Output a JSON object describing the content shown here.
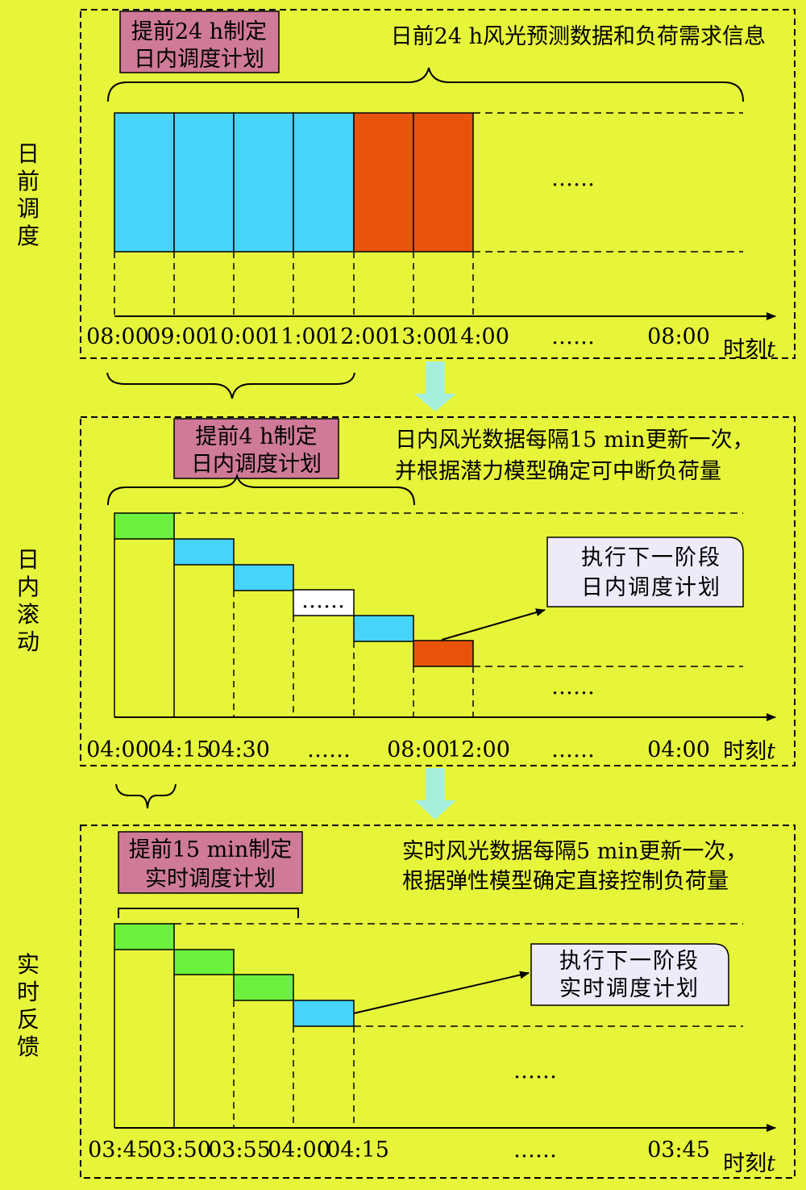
{
  "colors": {
    "background": "#E6F53A",
    "blue": "#46D4F8",
    "orange": "#E8540C",
    "green": "#6CF23C",
    "white": "#FFFFFF",
    "pink": "#CE7A98",
    "callout": "#EEEAF8",
    "flow_arrow": "#A6EFDC"
  },
  "sections": [
    {
      "side_title": "日前调度",
      "box": [
        "提前24 h制定",
        "日内调度计划"
      ],
      "note": [
        "日前24 h风光预测数据和负荷需求信息"
      ],
      "cells": [
        "blue",
        "blue",
        "blue",
        "blue",
        "orange",
        "orange"
      ],
      "ellipsis": "……",
      "ticks": [
        "08:00",
        "09:00",
        "10:00",
        "11:00",
        "12:00",
        "13:00",
        "14:00",
        "……",
        "08:00"
      ],
      "axis_label": "时刻",
      "axis_var": "t"
    },
    {
      "side_title": "日内滚动",
      "box": [
        "提前4 h制定",
        "日内调度计划"
      ],
      "note": [
        "日内风光数据每隔15 min更新一次，",
        "并根据潜力模型确定可中断负荷量"
      ],
      "cells": [
        "green",
        "blue",
        "blue",
        "white",
        "blue",
        "orange"
      ],
      "cell_ellipsis": "……",
      "ellipsis": "……",
      "callout": [
        "执行下一阶段",
        "日内调度计划"
      ],
      "ticks": [
        "04:00",
        "04:15",
        "04:30",
        "……",
        "08:00",
        "12:00",
        "……",
        "04:00"
      ],
      "axis_label": "时刻",
      "axis_var": "t"
    },
    {
      "side_title": "实时反馈",
      "box": [
        "提前15 min制定",
        "实时调度计划"
      ],
      "note": [
        "实时风光数据每隔5 min更新一次，",
        "根据弹性模型确定直接控制负荷量"
      ],
      "cells": [
        "green",
        "green",
        "green",
        "blue"
      ],
      "ellipsis": "……",
      "callout": [
        "执行下一阶段",
        "实时调度计划"
      ],
      "ticks": [
        "03:45",
        "03:50",
        "03:55",
        "04:00",
        "04:15",
        "……",
        "03:45"
      ],
      "axis_label": "时刻",
      "axis_var": "t"
    }
  ]
}
